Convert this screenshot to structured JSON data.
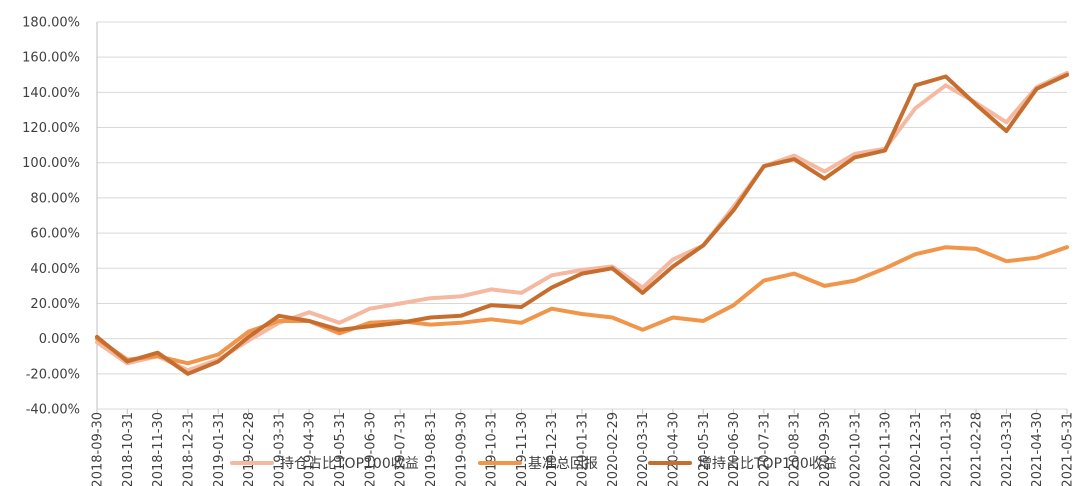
{
  "chart_data": {
    "type": "line",
    "title": "",
    "xlabel": "",
    "ylabel": "",
    "ylim": [
      -40,
      180
    ],
    "y_ticks": [
      -40,
      -20,
      0,
      20,
      40,
      60,
      80,
      100,
      120,
      140,
      160,
      180
    ],
    "y_tick_labels": [
      "-40.00%",
      "-20.00%",
      "0.00%",
      "20.00%",
      "40.00%",
      "60.00%",
      "80.00%",
      "100.00%",
      "120.00%",
      "140.00%",
      "160.00%",
      "180.00%"
    ],
    "grid": true,
    "legend_position": "bottom",
    "categories": [
      "2018-09-30",
      "2018-10-31",
      "2018-11-30",
      "2018-12-31",
      "2019-01-31",
      "2019-02-28",
      "2019-03-31",
      "2019-04-30",
      "2019-05-31",
      "2019-06-30",
      "2019-07-31",
      "2019-08-31",
      "2019-09-30",
      "2019-10-31",
      "2019-11-30",
      "2019-12-31",
      "2020-01-31",
      "2020-02-29",
      "2020-03-31",
      "2020-04-30",
      "2020-05-31",
      "2020-06-30",
      "2020-07-31",
      "2020-08-31",
      "2020-09-30",
      "2020-10-31",
      "2020-11-30",
      "2020-12-31",
      "2021-01-31",
      "2021-02-28",
      "2021-03-31",
      "2021-04-30",
      "2021-05-31"
    ],
    "series": [
      {
        "name": "持仓占比TOP100收益",
        "color": "#F4B9A0",
        "values": [
          -2,
          -14,
          -10,
          -18,
          -12,
          -1,
          9,
          15,
          9,
          17,
          20,
          23,
          24,
          28,
          26,
          36,
          39,
          41,
          29,
          45,
          53,
          75,
          98,
          104,
          95,
          105,
          108,
          131,
          144,
          134,
          123,
          143,
          151
        ]
      },
      {
        "name": "基准总回报",
        "color": "#F0954A",
        "values": [
          0,
          -12,
          -10,
          -14,
          -9,
          4,
          10,
          10,
          3,
          9,
          10,
          8,
          9,
          11,
          9,
          17,
          14,
          12,
          5,
          12,
          10,
          19,
          33,
          37,
          30,
          33,
          40,
          48,
          52,
          51,
          44,
          46,
          52
        ]
      },
      {
        "name": "增持占比TOP100收益",
        "color": "#C66E30",
        "values": [
          1,
          -13,
          -8,
          -20,
          -13,
          1,
          13,
          10,
          5,
          7,
          9,
          12,
          13,
          19,
          18,
          29,
          37,
          40,
          26,
          41,
          53,
          73,
          98,
          102,
          91,
          103,
          107,
          144,
          149,
          133,
          118,
          142,
          150
        ]
      }
    ]
  }
}
